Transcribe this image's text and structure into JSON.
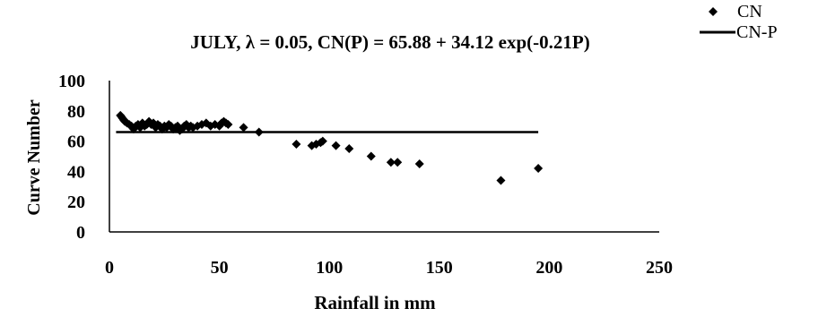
{
  "chart_data": {
    "type": "scatter",
    "title": "JULY, λ = 0.05, CN(P)  = 65.88 + 34.12 exp(-0.21P)",
    "xlabel": "Rainfall in mm",
    "ylabel": "Curve Number",
    "xlim": [
      0,
      250
    ],
    "ylim": [
      0,
      100
    ],
    "xticks": [
      0,
      50,
      100,
      150,
      200,
      250
    ],
    "yticks": [
      0,
      20,
      40,
      60,
      80,
      100
    ],
    "grid": false,
    "legend_position": "top-right",
    "series": [
      {
        "name": "CN",
        "marker": "diamond",
        "color": "#000000",
        "points": [
          [
            5,
            77
          ],
          [
            5.5,
            76
          ],
          [
            6,
            75
          ],
          [
            6.5,
            74
          ],
          [
            7,
            73
          ],
          [
            8,
            72
          ],
          [
            9,
            71
          ],
          [
            10,
            70
          ],
          [
            11,
            68
          ],
          [
            12,
            70
          ],
          [
            13,
            71
          ],
          [
            14,
            69
          ],
          [
            15,
            72
          ],
          [
            16,
            70
          ],
          [
            17,
            71
          ],
          [
            18,
            73
          ],
          [
            19,
            71
          ],
          [
            20,
            72
          ],
          [
            21,
            69
          ],
          [
            22,
            71
          ],
          [
            23,
            70
          ],
          [
            24,
            68
          ],
          [
            25,
            70
          ],
          [
            26,
            69
          ],
          [
            27,
            71
          ],
          [
            28,
            70
          ],
          [
            29,
            68
          ],
          [
            30,
            69
          ],
          [
            31,
            70
          ],
          [
            32,
            67
          ],
          [
            33,
            68
          ],
          [
            34,
            70
          ],
          [
            35,
            71
          ],
          [
            36,
            69
          ],
          [
            37,
            70
          ],
          [
            38,
            69
          ],
          [
            40,
            70
          ],
          [
            42,
            71
          ],
          [
            44,
            72
          ],
          [
            46,
            70
          ],
          [
            48,
            71
          ],
          [
            50,
            70
          ],
          [
            51,
            72
          ],
          [
            52,
            73
          ],
          [
            53,
            72
          ],
          [
            54,
            71
          ],
          [
            61,
            69
          ],
          [
            68,
            66
          ],
          [
            85,
            58
          ],
          [
            92,
            57
          ],
          [
            94,
            58
          ],
          [
            96,
            59
          ],
          [
            97,
            60
          ],
          [
            103,
            57
          ],
          [
            109,
            55
          ],
          [
            119,
            50
          ],
          [
            128,
            46
          ],
          [
            131,
            46
          ],
          [
            141,
            45
          ],
          [
            178,
            34
          ],
          [
            195,
            42
          ]
        ]
      },
      {
        "name": "CN-P",
        "type": "line",
        "color": "#000000",
        "points": [
          [
            3,
            66
          ],
          [
            5,
            66
          ],
          [
            195,
            66
          ]
        ]
      }
    ]
  }
}
